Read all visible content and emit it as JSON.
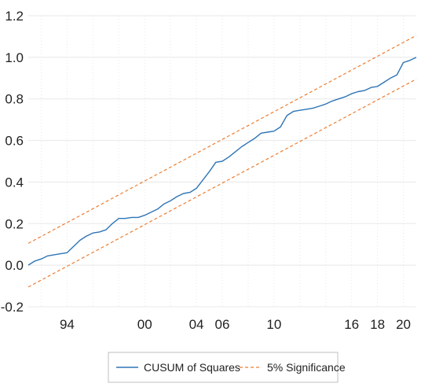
{
  "chart_data": {
    "type": "line",
    "title": "",
    "xlabel": "",
    "ylabel": "",
    "ylim": [
      -0.2,
      1.2
    ],
    "y_ticks": [
      -0.2,
      0.0,
      0.2,
      0.4,
      0.6,
      0.8,
      1.0,
      1.2
    ],
    "y_tick_labels": [
      "-0.2",
      "0.0",
      "0.2",
      "0.4",
      "0.6",
      "0.8",
      "1.0",
      "1.2"
    ],
    "x_range": [
      1991,
      2021
    ],
    "x_ticks": [
      1994,
      2000,
      2004,
      2006,
      2010,
      2016,
      2018,
      2020
    ],
    "x_tick_labels": [
      "94",
      "00",
      "04",
      "06",
      "10",
      "16",
      "18",
      "20"
    ],
    "grid": true,
    "legend_position": "bottom",
    "colors": {
      "cusum": "#2e75b6",
      "bounds": "#ed7d31",
      "grid": "#e8e8e8"
    },
    "series": [
      {
        "name": "CUSUM of Squares",
        "style": "solid",
        "x": [
          1991.0,
          1991.5,
          1992.0,
          1992.5,
          1993.0,
          1993.5,
          1994.0,
          1994.5,
          1995.0,
          1995.5,
          1996.0,
          1996.5,
          1997.0,
          1997.5,
          1998.0,
          1998.5,
          1999.0,
          1999.5,
          2000.0,
          2000.5,
          2001.0,
          2001.5,
          2002.0,
          2002.5,
          2003.0,
          2003.5,
          2004.0,
          2004.5,
          2005.0,
          2005.5,
          2006.0,
          2006.5,
          2007.0,
          2007.5,
          2008.0,
          2008.5,
          2009.0,
          2009.5,
          2010.0,
          2010.5,
          2011.0,
          2011.5,
          2012.0,
          2012.5,
          2013.0,
          2013.5,
          2014.0,
          2014.5,
          2015.0,
          2015.5,
          2016.0,
          2016.5,
          2017.0,
          2017.5,
          2018.0,
          2018.5,
          2019.0,
          2019.5,
          2020.0,
          2020.5,
          2021.0
        ],
        "values": [
          0.0,
          0.02,
          0.03,
          0.045,
          0.05,
          0.055,
          0.06,
          0.09,
          0.12,
          0.14,
          0.155,
          0.16,
          0.17,
          0.2,
          0.225,
          0.225,
          0.23,
          0.23,
          0.24,
          0.255,
          0.27,
          0.295,
          0.31,
          0.33,
          0.345,
          0.35,
          0.37,
          0.41,
          0.45,
          0.495,
          0.5,
          0.52,
          0.545,
          0.57,
          0.59,
          0.61,
          0.635,
          0.64,
          0.645,
          0.665,
          0.72,
          0.74,
          0.745,
          0.75,
          0.755,
          0.765,
          0.775,
          0.79,
          0.8,
          0.81,
          0.825,
          0.835,
          0.84,
          0.855,
          0.86,
          0.88,
          0.9,
          0.915,
          0.975,
          0.985,
          1.0
        ]
      },
      {
        "name": "5% Significance",
        "style": "dashed",
        "x": [
          1991.0,
          2021.0
        ],
        "values": [
          0.105,
          1.105
        ]
      },
      {
        "name": "",
        "style": "dashed",
        "x": [
          1991.0,
          2021.0
        ],
        "values": [
          -0.105,
          0.895
        ]
      }
    ]
  }
}
